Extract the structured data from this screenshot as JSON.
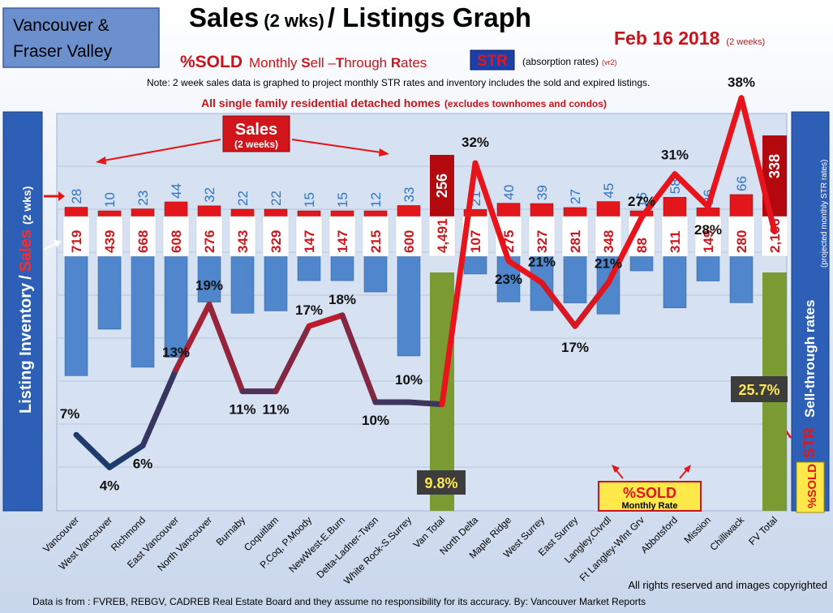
{
  "header": {
    "region_line1": "Vancouver &",
    "region_line2": "Fraser Valley",
    "title_a": "Sales",
    "title_b": "(2 wks)",
    "title_c": "/ Listings Graph",
    "date": "Feb 16 2018",
    "date_note": "(2 weeks)",
    "pct_sold": "%SOLD",
    "subtitle_words": [
      "Monthly ",
      "S",
      "ell –",
      "T",
      "hrough ",
      "R",
      "ates"
    ],
    "str_badge": "STR",
    "absorption": "(absorption rates)",
    "version": "(vr2)",
    "note": "Note: 2 week sales data is graphed to project monthly STR rates and inventory includes the sold and expired listings.",
    "scope_main": "All single family residential detached homes",
    "scope_excl": "(excludes townhomes and condos)"
  },
  "left_axis": {
    "inventory": "Listing Inventory",
    "sep": "/",
    "sales": "Sales",
    "paren": "(2 wks)"
  },
  "right_axis": {
    "str": "STR",
    "label": "Sell-through rates",
    "note": "(projected monthly STR rates)",
    "pct_sold": "%SOLD"
  },
  "callouts": {
    "sales_title": "Sales",
    "sales_sub": "(2 weeks)",
    "pct_sold": "%SOLD",
    "monthly_rate": "Monthly Rate",
    "van_total_str": "9.8%",
    "fv_total_str": "25.7%"
  },
  "footer": {
    "rights": "All rights reserved and  images copyrighted",
    "source": "Data is from : FVREB, REBGV, CADREB Real Estate Board and they assume  no responsibility for its accuracy.  By:  Vancouver Market Reports"
  },
  "colors": {
    "sales": "#e3171b",
    "inventory": "#4f86cc",
    "total_bar": "#7a9a32",
    "str_low": "#1e3b6b",
    "str_high": "#e8141b",
    "str_label": "#1e4f9f"
  },
  "chart_data": {
    "type": "bar",
    "categories": [
      "Vancouver",
      "West Vancouver",
      "Richmond",
      "East Vancouver",
      "North Vancouver",
      "Burnaby",
      "Coquitlam",
      "P.Coq, P.Moody",
      "NewWest-E.Burn",
      "Delta-Ladner-Twsn",
      "White Rock-S.Surrey",
      "Van Total",
      "North Delta",
      "Maple Ridge",
      "West Surrey",
      "East Surrey",
      "Langley,Clvrdl",
      "Ft Langley-Wlnt Grv",
      "Abbotsford",
      "Mission",
      "Chilliwack",
      "FV Total"
    ],
    "series": [
      {
        "name": "Sales",
        "values": [
          28,
          10,
          23,
          44,
          32,
          22,
          22,
          15,
          15,
          12,
          33,
          256,
          21,
          40,
          39,
          27,
          45,
          16,
          58,
          26,
          66,
          338
        ]
      },
      {
        "name": "Listing Inventory",
        "values": [
          719,
          439,
          668,
          608,
          276,
          343,
          329,
          147,
          147,
          215,
          600,
          4491,
          107,
          275,
          327,
          281,
          348,
          88,
          311,
          149,
          280,
          2166
        ]
      },
      {
        "name": "Sell-through rates",
        "values": [
          7,
          4,
          6,
          13,
          19,
          11,
          11,
          17,
          18,
          10,
          10,
          9.8,
          32,
          23,
          21,
          17,
          21,
          27,
          31,
          28,
          38,
          25.7
        ]
      }
    ],
    "sales_labels": [
      "28",
      "10",
      "23",
      "44",
      "32",
      "22",
      "22",
      "15",
      "15",
      "12",
      "33",
      "256",
      "21",
      "40",
      "39",
      "27",
      "45",
      "16",
      "58",
      "26",
      "66",
      "338"
    ],
    "inventory_labels": [
      "719",
      "439",
      "668",
      "608",
      "276",
      "343",
      "329",
      "147",
      "147",
      "215",
      "600",
      "4,491",
      "107",
      "275",
      "327",
      "281",
      "348",
      "88",
      "311",
      "149",
      "280",
      "2,166"
    ],
    "str_labels": [
      "7%",
      "4%",
      "6%",
      "13%",
      "19%",
      "11%",
      "11%",
      "17%",
      "18%",
      "10%",
      "10%",
      "",
      "32%",
      "23%",
      "21%",
      "17%",
      "21%",
      "27%",
      "31%",
      "28%",
      "38%",
      ""
    ],
    "total_categories": [
      "Van Total",
      "FV Total"
    ]
  }
}
